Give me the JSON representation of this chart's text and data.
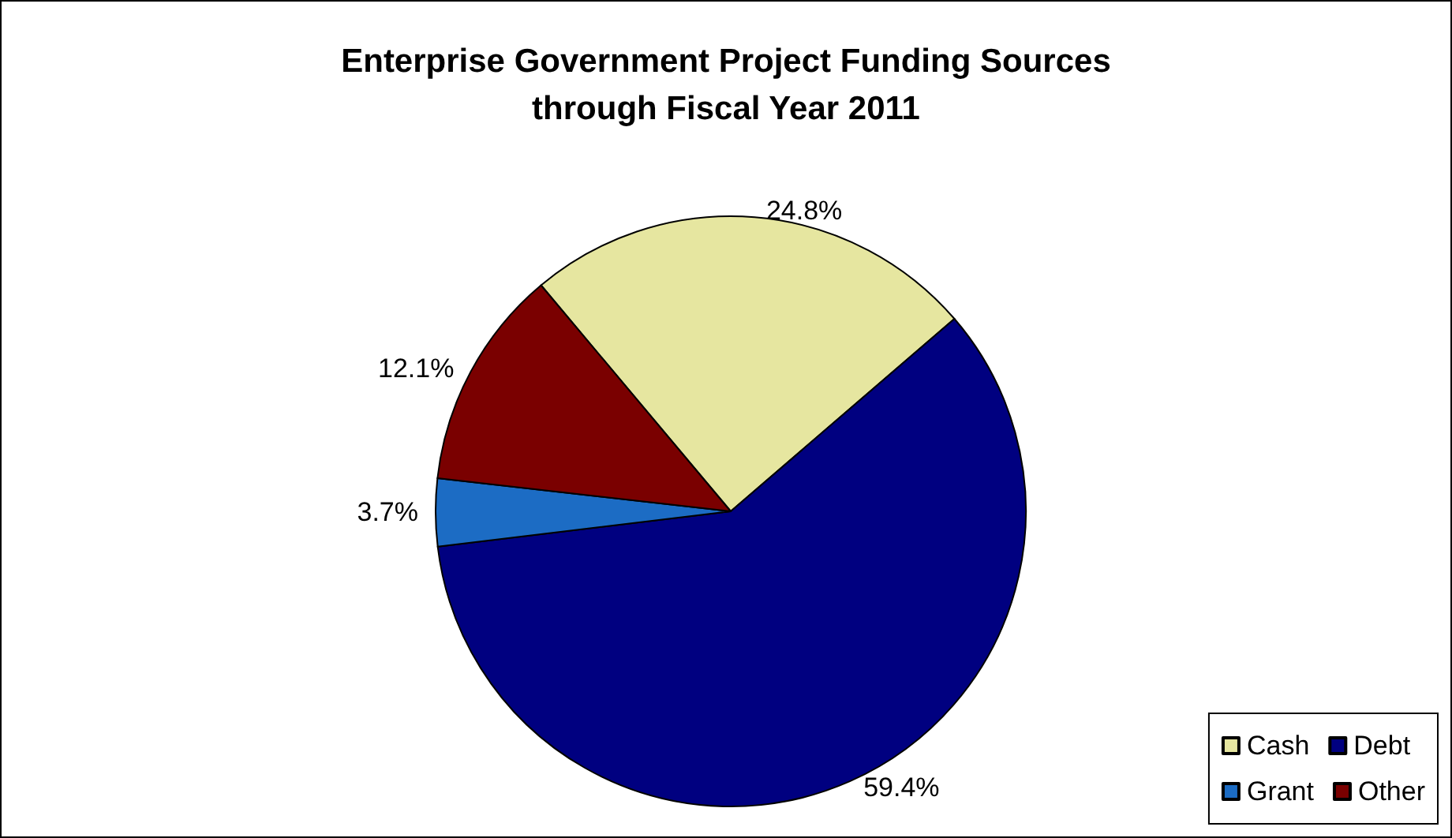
{
  "chart_data": {
    "type": "pie",
    "title": "Enterprise Government Project Funding Sources\nthrough Fiscal Year 2011",
    "categories": [
      "Cash",
      "Debt",
      "Grant",
      "Other"
    ],
    "values": [
      24.8,
      59.4,
      3.7,
      12.1
    ],
    "colors": [
      "#e6e6a0",
      "#000080",
      "#1c6cc4",
      "#7a0000"
    ],
    "value_labels": [
      "24.8%",
      "59.4%",
      "3.7%",
      "12.1%"
    ],
    "legend": "bottom right"
  }
}
